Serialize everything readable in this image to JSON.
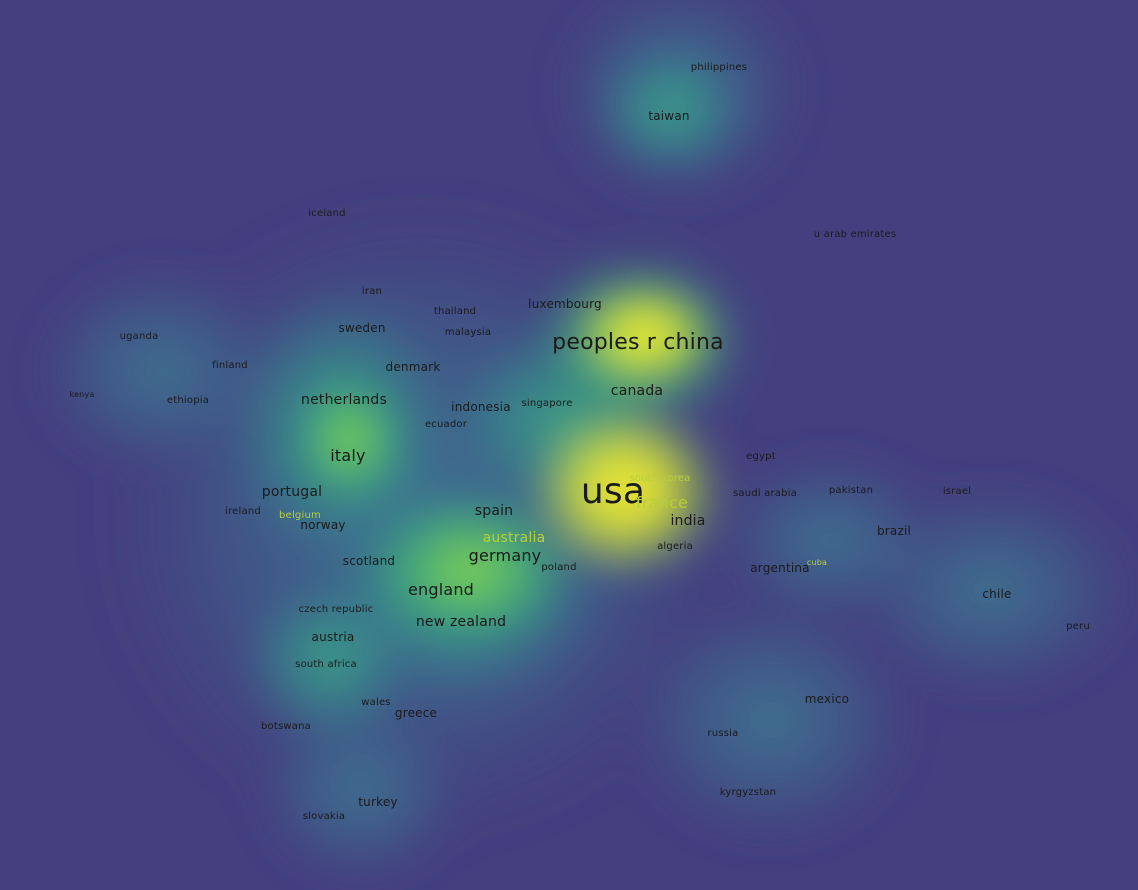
{
  "map": {
    "colors": {
      "background": "#44407f",
      "low": "#3b5b8e",
      "mid": "#2f9b88",
      "high": "#6cce59",
      "peak": "#f1e836",
      "label": "#1b1b1b"
    },
    "labels": [
      {
        "id": "philippines",
        "text": "philippines",
        "weight": 1
      },
      {
        "id": "taiwan",
        "text": "taiwan",
        "weight": 2
      },
      {
        "id": "iceland",
        "text": "iceland",
        "weight": 1
      },
      {
        "id": "u-arab-emirates",
        "text": "u arab emirates",
        "weight": 1
      },
      {
        "id": "iran",
        "text": "iran",
        "weight": 1
      },
      {
        "id": "luxembourg",
        "text": "luxembourg",
        "weight": 2
      },
      {
        "id": "thailand",
        "text": "thailand",
        "weight": 1
      },
      {
        "id": "sweden",
        "text": "sweden",
        "weight": 2
      },
      {
        "id": "malaysia",
        "text": "malaysia",
        "weight": 1
      },
      {
        "id": "peoples-r-china",
        "text": "peoples r china",
        "weight": 5
      },
      {
        "id": "uganda",
        "text": "uganda",
        "weight": 1
      },
      {
        "id": "finland",
        "text": "finland",
        "weight": 1
      },
      {
        "id": "denmark",
        "text": "denmark",
        "weight": 2
      },
      {
        "id": "canada",
        "text": "canada",
        "weight": 3
      },
      {
        "id": "kenya",
        "text": "kenya",
        "weight": 0
      },
      {
        "id": "ethiopia",
        "text": "ethiopia",
        "weight": 1
      },
      {
        "id": "netherlands",
        "text": "netherlands",
        "weight": 3
      },
      {
        "id": "indonesia",
        "text": "indonesia",
        "weight": 2
      },
      {
        "id": "singapore",
        "text": "singapore",
        "weight": 1
      },
      {
        "id": "ecuador",
        "text": "ecuador",
        "weight": 1
      },
      {
        "id": "italy",
        "text": "italy",
        "weight": 4
      },
      {
        "id": "egypt",
        "text": "egypt",
        "weight": 1
      },
      {
        "id": "south-korea",
        "text": "south korea",
        "weight": 1,
        "faint": true
      },
      {
        "id": "usa",
        "text": "usa",
        "weight": 6
      },
      {
        "id": "portugal",
        "text": "portugal",
        "weight": 3
      },
      {
        "id": "saudi-arabia",
        "text": "saudi arabia",
        "weight": 1
      },
      {
        "id": "pakistan",
        "text": "pakistan",
        "weight": 1
      },
      {
        "id": "israel",
        "text": "israel",
        "weight": 1
      },
      {
        "id": "france",
        "text": "france",
        "weight": 4,
        "faint": true
      },
      {
        "id": "ireland",
        "text": "ireland",
        "weight": 1
      },
      {
        "id": "belgium",
        "text": "belgium",
        "weight": 1,
        "faint": true
      },
      {
        "id": "spain",
        "text": "spain",
        "weight": 3
      },
      {
        "id": "india",
        "text": "india",
        "weight": 3
      },
      {
        "id": "norway",
        "text": "norway",
        "weight": 2
      },
      {
        "id": "australia",
        "text": "australia",
        "weight": 3,
        "faint": true
      },
      {
        "id": "brazil",
        "text": "brazil",
        "weight": 2
      },
      {
        "id": "algeria",
        "text": "algeria",
        "weight": 1
      },
      {
        "id": "germany",
        "text": "germany",
        "weight": 4
      },
      {
        "id": "scotland",
        "text": "scotland",
        "weight": 2
      },
      {
        "id": "poland",
        "text": "poland",
        "weight": 1
      },
      {
        "id": "argentina",
        "text": "argentina",
        "weight": 2
      },
      {
        "id": "cuba",
        "text": "cuba",
        "weight": 0,
        "faint": true
      },
      {
        "id": "england",
        "text": "england",
        "weight": 4
      },
      {
        "id": "chile",
        "text": "chile",
        "weight": 2
      },
      {
        "id": "czech-republic",
        "text": "czech republic",
        "weight": 1
      },
      {
        "id": "new-zealand",
        "text": "new zealand",
        "weight": 3
      },
      {
        "id": "peru",
        "text": "peru",
        "weight": 1
      },
      {
        "id": "austria",
        "text": "austria",
        "weight": 2
      },
      {
        "id": "south-africa",
        "text": "south africa",
        "weight": 1
      },
      {
        "id": "mexico",
        "text": "mexico",
        "weight": 2
      },
      {
        "id": "wales",
        "text": "wales",
        "weight": 1
      },
      {
        "id": "greece",
        "text": "greece",
        "weight": 2
      },
      {
        "id": "botswana",
        "text": "botswana",
        "weight": 1
      },
      {
        "id": "russia",
        "text": "russia",
        "weight": 1
      },
      {
        "id": "kyrgyzstan",
        "text": "kyrgyzstan",
        "weight": 1
      },
      {
        "id": "turkey",
        "text": "turkey",
        "weight": 2
      },
      {
        "id": "slovakia",
        "text": "slovakia",
        "weight": 1
      }
    ]
  }
}
